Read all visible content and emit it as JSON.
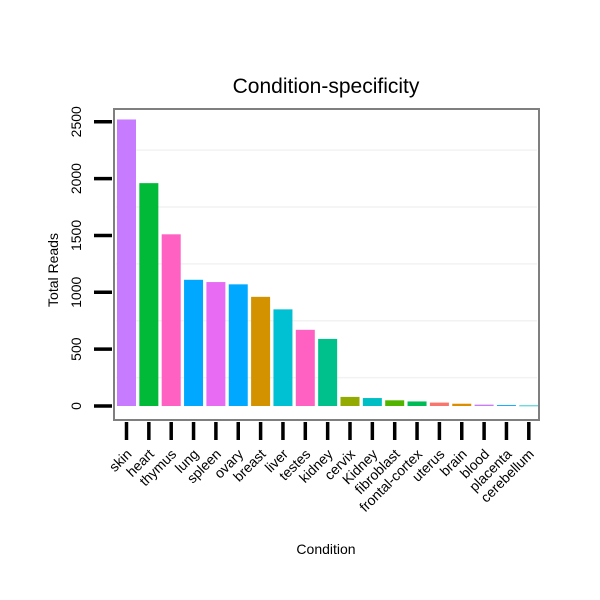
{
  "chart_data": {
    "type": "bar",
    "title": "Condition-specificity",
    "xlabel": "Condition",
    "ylabel": "Total Reads",
    "ylim": [
      0,
      2650
    ],
    "yticks": [
      0,
      500,
      1000,
      1500,
      2000,
      2500
    ],
    "grid": "horizontal",
    "legend": "none",
    "categories": [
      "skin",
      "heart",
      "thymus",
      "lung",
      "spleen",
      "ovary",
      "breast",
      "liver",
      "testes",
      "kidney",
      "cervix",
      "Kidney",
      "fibroblast",
      "frontal-cortex",
      "uterus",
      "brain",
      "blood",
      "placenta",
      "cerebellum"
    ],
    "values": [
      2520,
      1960,
      1510,
      1110,
      1090,
      1070,
      960,
      850,
      670,
      590,
      80,
      70,
      50,
      40,
      30,
      20,
      12,
      8,
      5
    ],
    "colors": [
      "#c77cff",
      "#00ba38",
      "#ff61c3",
      "#00a9ff",
      "#e76bf3",
      "#00a9ff",
      "#d39200",
      "#00c1d4",
      "#ff61c3",
      "#00c08b",
      "#93aa00",
      "#00bfc4",
      "#53b400",
      "#00bc56",
      "#f8766d",
      "#db8e00",
      "#c77cff",
      "#00a9ff",
      "#00bfc4"
    ]
  }
}
